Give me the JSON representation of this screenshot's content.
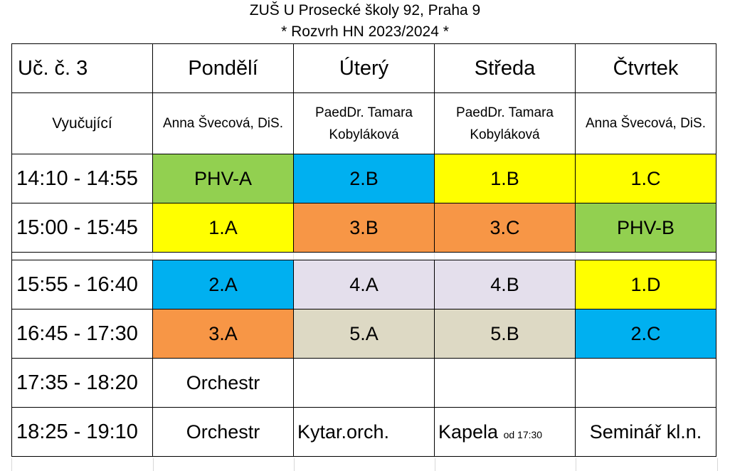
{
  "header": {
    "line1": "ZUŠ U Prosecké školy 92, Praha 9",
    "line2": "* Rozvrh HN 2023/2024 *"
  },
  "schedule": {
    "room": "Uč. č. 3",
    "days": [
      "Pondělí",
      "Úterý",
      "Středa",
      "Čtvrtek"
    ],
    "teacher_label": "Vyučující",
    "teachers": [
      "Anna Švecová, DiS.",
      "PaedDr. Tamara Kobyláková",
      "PaedDr. Tamara Kobyláková",
      "Anna Švecová, DiS."
    ],
    "rows": [
      {
        "time": "14:10 - 14:55",
        "cells": [
          {
            "text": "PHV-A",
            "color": "#92d050"
          },
          {
            "text": "2.B",
            "color": "#00b0f0"
          },
          {
            "text": "1.B",
            "color": "#ffff00"
          },
          {
            "text": "1.C",
            "color": "#ffff00"
          }
        ]
      },
      {
        "time": "15:00 - 15:45",
        "cells": [
          {
            "text": "1.A",
            "color": "#ffff00"
          },
          {
            "text": "3.B",
            "color": "#f79646"
          },
          {
            "text": "3.C",
            "color": "#f79646"
          },
          {
            "text": "PHV-B",
            "color": "#92d050"
          }
        ]
      },
      {
        "time": "15:55 - 16:40",
        "cells": [
          {
            "text": "2.A",
            "color": "#00b0f0"
          },
          {
            "text": "4.A",
            "color": "#e4dfec"
          },
          {
            "text": "4.B",
            "color": "#e4dfec"
          },
          {
            "text": "1.D",
            "color": "#ffff00"
          }
        ]
      },
      {
        "time": "16:45 - 17:30",
        "cells": [
          {
            "text": "3.A",
            "color": "#f79646"
          },
          {
            "text": "5.A",
            "color": "#ddd9c4"
          },
          {
            "text": "5.B",
            "color": "#ddd9c4"
          },
          {
            "text": "2.C",
            "color": "#00b0f0"
          }
        ]
      },
      {
        "time": "17:35 - 18:20",
        "cells": [
          {
            "text": "Orchestr",
            "color": "#ffffff"
          },
          {
            "text": "",
            "color": "#ffffff"
          },
          {
            "text": "",
            "color": "#ffffff"
          },
          {
            "text": "",
            "color": "#ffffff"
          }
        ]
      },
      {
        "time": "18:25 - 19:10",
        "cells": [
          {
            "text": "Orchestr",
            "color": "#ffffff"
          },
          {
            "text": "Kytar.orch.",
            "color": "#ffffff"
          },
          {
            "text": "Kapela",
            "note": "od 17:30",
            "color": "#ffffff"
          },
          {
            "text": "Seminář kl.n.",
            "color": "#ffffff"
          }
        ]
      }
    ]
  }
}
